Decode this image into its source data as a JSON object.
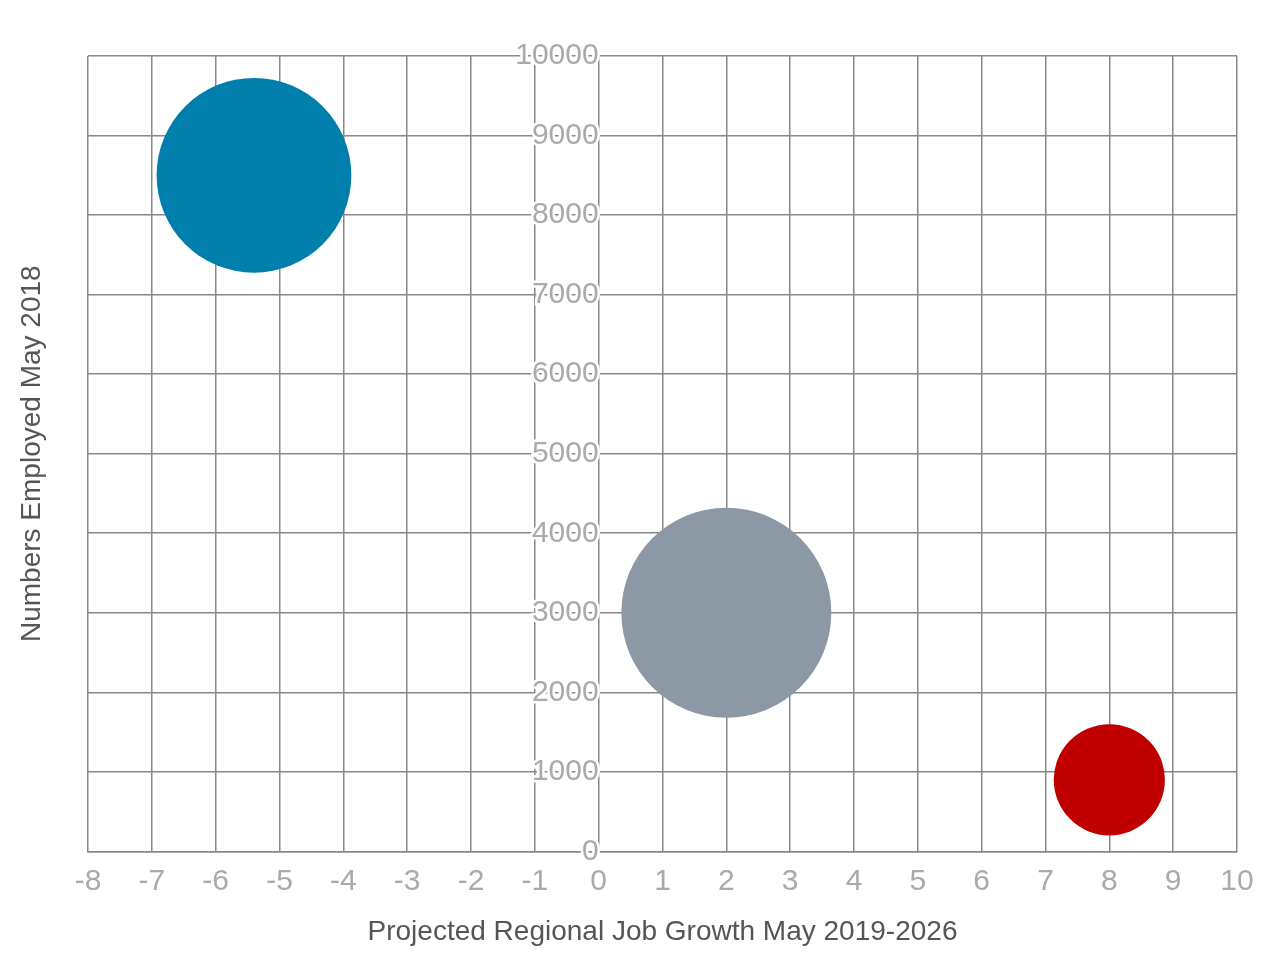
{
  "chart_data": {
    "type": "bubble",
    "xlabel": "Projected Regional Job Growth May 2019-2026",
    "ylabel": "Numbers Employed May 2018",
    "xlim": [
      -8,
      10
    ],
    "xticks": [
      -8,
      -7,
      -6,
      -5,
      -4,
      -3,
      -2,
      -1,
      0,
      1,
      2,
      3,
      4,
      5,
      6,
      7,
      8,
      9,
      10
    ],
    "ylim": [
      0,
      10000
    ],
    "yticks": [
      0,
      1000,
      2000,
      3000,
      4000,
      5000,
      6000,
      7000,
      8000,
      9000,
      10000
    ],
    "grid": true,
    "legend": false,
    "series": [
      {
        "color": "#007fad",
        "x": [
          -5.4
        ],
        "values": [
          8500
        ],
        "sizes": [
          0.86
        ]
      },
      {
        "color": "#8d98a5",
        "x": [
          2
        ],
        "values": [
          3000
        ],
        "sizes": [
          1
        ]
      },
      {
        "color": "#c00000",
        "x": [
          8
        ],
        "values": [
          900
        ],
        "sizes": [
          0.28
        ]
      }
    ]
  }
}
